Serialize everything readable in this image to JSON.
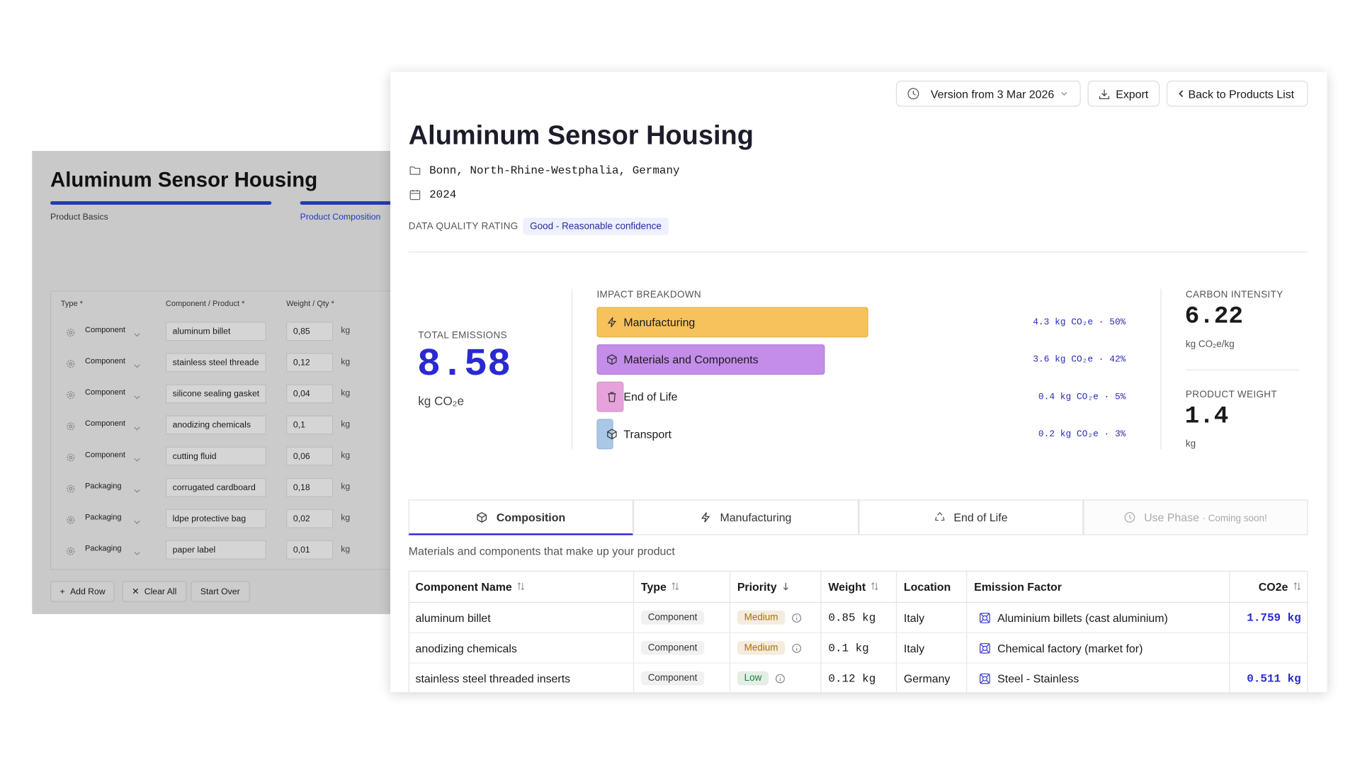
{
  "back_panel": {
    "title": "Aluminum Sensor Housing",
    "steps": [
      "Product Basics",
      "Product Composition"
    ],
    "columns": [
      "Type *",
      "Component / Product *",
      "Weight / Qty *"
    ],
    "rows": [
      [
        "Component",
        "aluminum billet",
        "0,85",
        "kg"
      ],
      [
        "Component",
        "stainless steel threade",
        "0,12",
        "kg"
      ],
      [
        "Component",
        "silicone sealing gasket",
        "0,04",
        "kg"
      ],
      [
        "Component",
        "anodizing chemicals",
        "0,1",
        "kg"
      ],
      [
        "Component",
        "cutting fluid",
        "0,06",
        "kg"
      ],
      [
        "Packaging",
        "corrugated cardboard",
        "0,18",
        "kg"
      ],
      [
        "Packaging",
        "ldpe protective bag",
        "0,02",
        "kg"
      ],
      [
        "Packaging",
        "paper label",
        "0,01",
        "kg"
      ]
    ],
    "buttons": [
      "Add Row",
      "Clear All",
      "Start Over"
    ]
  },
  "header": {
    "version": "Version from 3 Mar 2026",
    "export": "Export",
    "back": "Back to Products List"
  },
  "product": {
    "title": "Aluminum Sensor Housing",
    "location": "Bonn, North-Rhine-Westphalia, Germany",
    "year": "2024",
    "quality_label": "DATA QUALITY RATING",
    "quality": "Good - Reasonable confidence"
  },
  "total": {
    "label": "TOTAL EMISSIONS",
    "value": "8.58",
    "unit": "kg CO₂e"
  },
  "impact": {
    "label": "IMPACT BREAKDOWN",
    "items": [
      {
        "name": "Manufacturing",
        "share": 50,
        "label": "4.3 kg CO₂e · 50%",
        "color": "#f7c15c"
      },
      {
        "name": "Materials and Components",
        "share": 42,
        "label": "3.6 kg CO₂e · 42%",
        "color": "#c38de9"
      },
      {
        "name": "End of Life",
        "share": 5,
        "label": "0.4 kg CO₂e · 5%",
        "color": "#e7a2dc"
      },
      {
        "name": "Transport",
        "share": 3,
        "label": "0.2 kg CO₂e · 3%",
        "color": "#a9c7e6"
      }
    ]
  },
  "intensity": {
    "label": "CARBON INTENSITY",
    "value": "6.22",
    "unit": "kg CO₂e/kg"
  },
  "weight": {
    "label": "PRODUCT WEIGHT",
    "value": "1.4",
    "unit": "kg"
  },
  "tabs": [
    {
      "label": "Composition"
    },
    {
      "label": "Manufacturing"
    },
    {
      "label": "End of Life"
    },
    {
      "label": "Use Phase",
      "note": "· Coming soon!"
    }
  ],
  "description": "Materials and components that make up your product",
  "table": {
    "columns": [
      "Component Name",
      "Type",
      "Priority",
      "Weight",
      "Location",
      "Emission Factor",
      "CO2e"
    ],
    "rows": [
      {
        "name": "aluminum billet",
        "type": "Component",
        "priority": "Medium",
        "priority_color": "#a8700a",
        "weight": "0.85 kg",
        "location": "Italy",
        "factor": "Aluminium billets (cast aluminium)",
        "co2e": "1.759 kg"
      },
      {
        "name": "anodizing chemicals",
        "type": "Component",
        "priority": "Medium",
        "priority_color": "#a8700a",
        "weight": "0.1 kg",
        "location": "Italy",
        "factor": "Chemical factory (market for)",
        "co2e": null
      },
      {
        "name": "stainless steel threaded inserts",
        "type": "Component",
        "priority": "Low",
        "priority_color": "#1f7d3b",
        "weight": "0.12 kg",
        "location": "Germany",
        "factor": "Steel - Stainless",
        "co2e": "0.511 kg"
      }
    ]
  }
}
